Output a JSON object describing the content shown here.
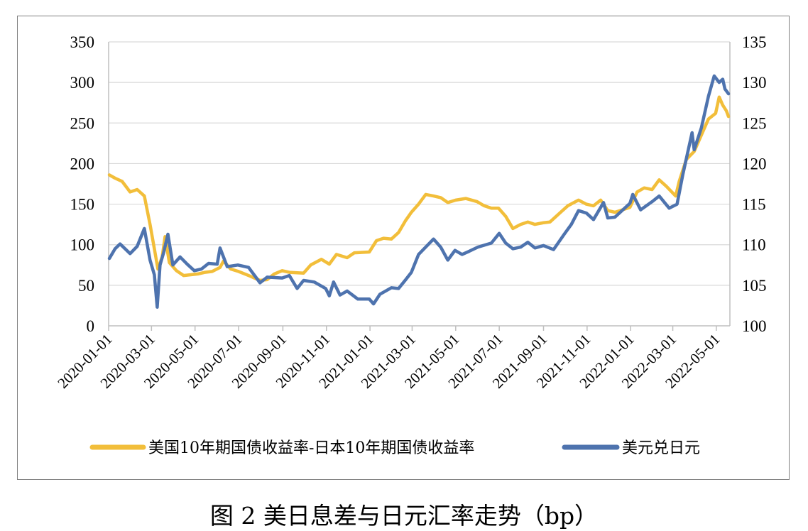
{
  "caption": "图 2  美日息差与日元汇率走势（bp）",
  "chart_data": {
    "type": "line",
    "title": "",
    "left_axis": {
      "min": 0,
      "max": 350,
      "step": 50,
      "ticks": [
        "0",
        "50",
        "100",
        "150",
        "200",
        "250",
        "300",
        "350"
      ]
    },
    "right_axis": {
      "min": 100,
      "max": 135,
      "step": 5,
      "ticks": [
        "100",
        "105",
        "110",
        "115",
        "120",
        "125",
        "130",
        "135"
      ]
    },
    "x_ticks": [
      "2020-01-01",
      "2020-03-01",
      "2020-05-01",
      "2020-07-01",
      "2020-09-01",
      "2020-11-01",
      "2021-01-01",
      "2021-03-01",
      "2021-05-01",
      "2021-07-01",
      "2021-09-01",
      "2021-11-01",
      "2022-01-01",
      "2022-03-01",
      "2022-05-01"
    ],
    "x_range": [
      "2020-01-01",
      "2022-05-20"
    ],
    "grid": "horizontal",
    "legend_position": "bottom",
    "series": [
      {
        "name": "美国10年期国债收益率-日本10年期国债收益率",
        "axis": "left",
        "color": "#F2BE3A",
        "points": [
          [
            "2020-01-02",
            186
          ],
          [
            "2020-01-10",
            182
          ],
          [
            "2020-01-20",
            178
          ],
          [
            "2020-01-31",
            165
          ],
          [
            "2020-02-10",
            168
          ],
          [
            "2020-02-20",
            160
          ],
          [
            "2020-02-28",
            125
          ],
          [
            "2020-03-05",
            95
          ],
          [
            "2020-03-10",
            70
          ],
          [
            "2020-03-16",
            85
          ],
          [
            "2020-03-20",
            110
          ],
          [
            "2020-03-26",
            78
          ],
          [
            "2020-04-05",
            68
          ],
          [
            "2020-04-15",
            62
          ],
          [
            "2020-04-25",
            63
          ],
          [
            "2020-05-05",
            64
          ],
          [
            "2020-05-15",
            66
          ],
          [
            "2020-05-25",
            67
          ],
          [
            "2020-06-05",
            72
          ],
          [
            "2020-06-10",
            80
          ],
          [
            "2020-06-20",
            70
          ],
          [
            "2020-07-01",
            67
          ],
          [
            "2020-07-15",
            62
          ],
          [
            "2020-07-31",
            56
          ],
          [
            "2020-08-10",
            57
          ],
          [
            "2020-08-20",
            64
          ],
          [
            "2020-08-31",
            68
          ],
          [
            "2020-09-10",
            66
          ],
          [
            "2020-09-30",
            65
          ],
          [
            "2020-10-10",
            75
          ],
          [
            "2020-10-25",
            82
          ],
          [
            "2020-11-05",
            76
          ],
          [
            "2020-11-15",
            88
          ],
          [
            "2020-11-30",
            84
          ],
          [
            "2020-12-10",
            90
          ],
          [
            "2020-12-31",
            91
          ],
          [
            "2021-01-10",
            105
          ],
          [
            "2021-01-20",
            108
          ],
          [
            "2021-01-31",
            107
          ],
          [
            "2021-02-10",
            115
          ],
          [
            "2021-02-20",
            130
          ],
          [
            "2021-02-28",
            140
          ],
          [
            "2021-03-10",
            150
          ],
          [
            "2021-03-20",
            162
          ],
          [
            "2021-03-31",
            160
          ],
          [
            "2021-04-10",
            158
          ],
          [
            "2021-04-20",
            152
          ],
          [
            "2021-05-01",
            155
          ],
          [
            "2021-05-15",
            157
          ],
          [
            "2021-05-31",
            153
          ],
          [
            "2021-06-10",
            148
          ],
          [
            "2021-06-20",
            145
          ],
          [
            "2021-06-30",
            145
          ],
          [
            "2021-07-10",
            135
          ],
          [
            "2021-07-20",
            120
          ],
          [
            "2021-07-31",
            125
          ],
          [
            "2021-08-10",
            128
          ],
          [
            "2021-08-20",
            125
          ],
          [
            "2021-08-31",
            127
          ],
          [
            "2021-09-10",
            128
          ],
          [
            "2021-09-25",
            140
          ],
          [
            "2021-10-05",
            148
          ],
          [
            "2021-10-20",
            155
          ],
          [
            "2021-10-31",
            150
          ],
          [
            "2021-11-10",
            148
          ],
          [
            "2021-11-20",
            155
          ],
          [
            "2021-11-30",
            142
          ],
          [
            "2021-12-10",
            140
          ],
          [
            "2021-12-31",
            146
          ],
          [
            "2022-01-10",
            165
          ],
          [
            "2022-01-20",
            170
          ],
          [
            "2022-01-31",
            168
          ],
          [
            "2022-02-10",
            180
          ],
          [
            "2022-02-20",
            172
          ],
          [
            "2022-03-05",
            160
          ],
          [
            "2022-03-10",
            178
          ],
          [
            "2022-03-20",
            205
          ],
          [
            "2022-03-31",
            215
          ],
          [
            "2022-04-10",
            235
          ],
          [
            "2022-04-20",
            255
          ],
          [
            "2022-04-30",
            262
          ],
          [
            "2022-05-05",
            282
          ],
          [
            "2022-05-10",
            272
          ],
          [
            "2022-05-15",
            265
          ],
          [
            "2022-05-18",
            258
          ]
        ]
      },
      {
        "name": "美元兑日元",
        "axis": "right",
        "color": "#4E73AE",
        "points": [
          [
            "2020-01-02",
            108.3
          ],
          [
            "2020-01-10",
            109.5
          ],
          [
            "2020-01-17",
            110.1
          ],
          [
            "2020-01-31",
            108.9
          ],
          [
            "2020-02-10",
            109.8
          ],
          [
            "2020-02-20",
            112.0
          ],
          [
            "2020-02-28",
            108.1
          ],
          [
            "2020-03-05",
            106.3
          ],
          [
            "2020-03-09",
            102.3
          ],
          [
            "2020-03-13",
            107.5
          ],
          [
            "2020-03-18",
            109.0
          ],
          [
            "2020-03-24",
            111.3
          ],
          [
            "2020-03-31",
            107.5
          ],
          [
            "2020-04-10",
            108.5
          ],
          [
            "2020-04-20",
            107.6
          ],
          [
            "2020-04-30",
            106.8
          ],
          [
            "2020-05-10",
            107.0
          ],
          [
            "2020-05-20",
            107.7
          ],
          [
            "2020-06-01",
            107.6
          ],
          [
            "2020-06-05",
            109.6
          ],
          [
            "2020-06-15",
            107.3
          ],
          [
            "2020-06-30",
            107.5
          ],
          [
            "2020-07-15",
            107.2
          ],
          [
            "2020-07-31",
            105.3
          ],
          [
            "2020-08-10",
            106.0
          ],
          [
            "2020-08-31",
            105.9
          ],
          [
            "2020-09-10",
            106.2
          ],
          [
            "2020-09-21",
            104.6
          ],
          [
            "2020-09-30",
            105.6
          ],
          [
            "2020-10-15",
            105.4
          ],
          [
            "2020-10-31",
            104.6
          ],
          [
            "2020-11-05",
            103.7
          ],
          [
            "2020-11-11",
            105.4
          ],
          [
            "2020-11-20",
            103.8
          ],
          [
            "2020-11-30",
            104.3
          ],
          [
            "2020-12-15",
            103.3
          ],
          [
            "2020-12-31",
            103.3
          ],
          [
            "2021-01-06",
            102.7
          ],
          [
            "2021-01-15",
            103.9
          ],
          [
            "2021-01-31",
            104.7
          ],
          [
            "2021-02-10",
            104.6
          ],
          [
            "2021-02-20",
            105.7
          ],
          [
            "2021-02-28",
            106.6
          ],
          [
            "2021-03-10",
            108.8
          ],
          [
            "2021-03-31",
            110.7
          ],
          [
            "2021-04-10",
            109.7
          ],
          [
            "2021-04-20",
            108.1
          ],
          [
            "2021-04-30",
            109.3
          ],
          [
            "2021-05-10",
            108.8
          ],
          [
            "2021-05-20",
            109.2
          ],
          [
            "2021-06-01",
            109.7
          ],
          [
            "2021-06-20",
            110.2
          ],
          [
            "2021-07-01",
            111.4
          ],
          [
            "2021-07-10",
            110.2
          ],
          [
            "2021-07-20",
            109.5
          ],
          [
            "2021-07-31",
            109.7
          ],
          [
            "2021-08-10",
            110.3
          ],
          [
            "2021-08-20",
            109.6
          ],
          [
            "2021-09-01",
            109.9
          ],
          [
            "2021-09-15",
            109.4
          ],
          [
            "2021-09-30",
            111.3
          ],
          [
            "2021-10-10",
            112.5
          ],
          [
            "2021-10-20",
            114.2
          ],
          [
            "2021-10-31",
            113.9
          ],
          [
            "2021-11-10",
            113.1
          ],
          [
            "2021-11-24",
            115.2
          ],
          [
            "2021-11-30",
            113.3
          ],
          [
            "2021-12-10",
            113.4
          ],
          [
            "2021-12-31",
            115.1
          ],
          [
            "2022-01-04",
            116.2
          ],
          [
            "2022-01-15",
            114.3
          ],
          [
            "2022-01-31",
            115.3
          ],
          [
            "2022-02-10",
            116.0
          ],
          [
            "2022-02-24",
            114.5
          ],
          [
            "2022-03-07",
            115.0
          ],
          [
            "2022-03-15",
            118.6
          ],
          [
            "2022-03-28",
            123.8
          ],
          [
            "2022-03-31",
            121.7
          ],
          [
            "2022-04-10",
            124.4
          ],
          [
            "2022-04-20",
            128.3
          ],
          [
            "2022-04-28",
            130.8
          ],
          [
            "2022-05-05",
            130.0
          ],
          [
            "2022-05-10",
            130.4
          ],
          [
            "2022-05-13",
            129.2
          ],
          [
            "2022-05-18",
            128.6
          ]
        ]
      }
    ]
  }
}
